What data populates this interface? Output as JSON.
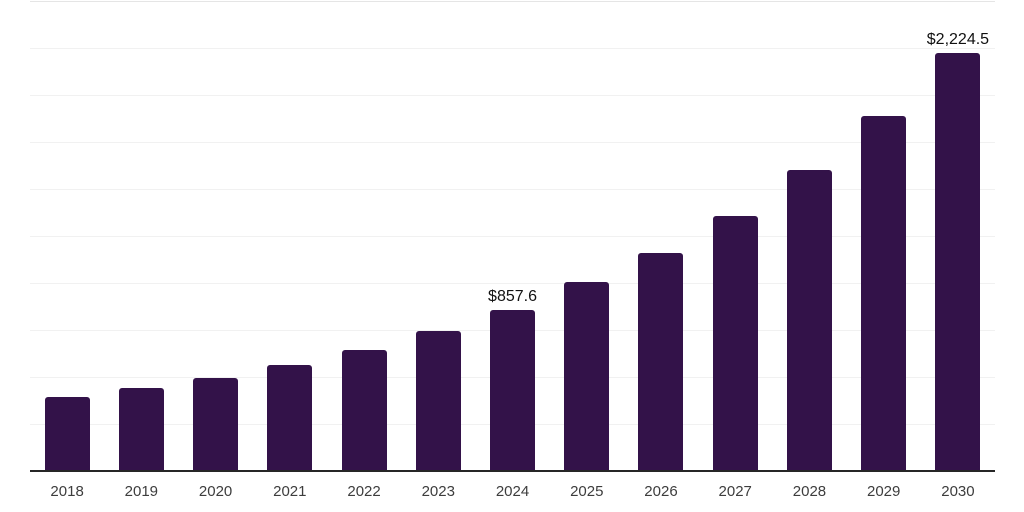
{
  "page": {
    "background": "#ffffff"
  },
  "chart_data": {
    "type": "bar",
    "title": "",
    "xlabel": "",
    "ylabel": "",
    "categories": [
      "2018",
      "2019",
      "2020",
      "2021",
      "2022",
      "2023",
      "2024",
      "2025",
      "2026",
      "2027",
      "2028",
      "2029",
      "2030"
    ],
    "values": [
      392,
      441,
      494,
      563,
      646,
      745,
      857.6,
      1003,
      1161,
      1358,
      1600,
      1886,
      2224.5
    ],
    "value_labels": {
      "2024": "$857.6",
      "2030": "$2,224.5"
    },
    "ylim": [
      0,
      2500
    ],
    "gridline_step": 250,
    "grid": "horizontal-only",
    "legend": "none",
    "y_axis_tick_labels": "none",
    "colors": {
      "bar": "#331249",
      "axis_line": "#262626",
      "gridline": "#f1f1f1",
      "top_gridline": "#e5e5e5",
      "tick_label": "#3d3d3d",
      "data_label": "#111111"
    }
  }
}
